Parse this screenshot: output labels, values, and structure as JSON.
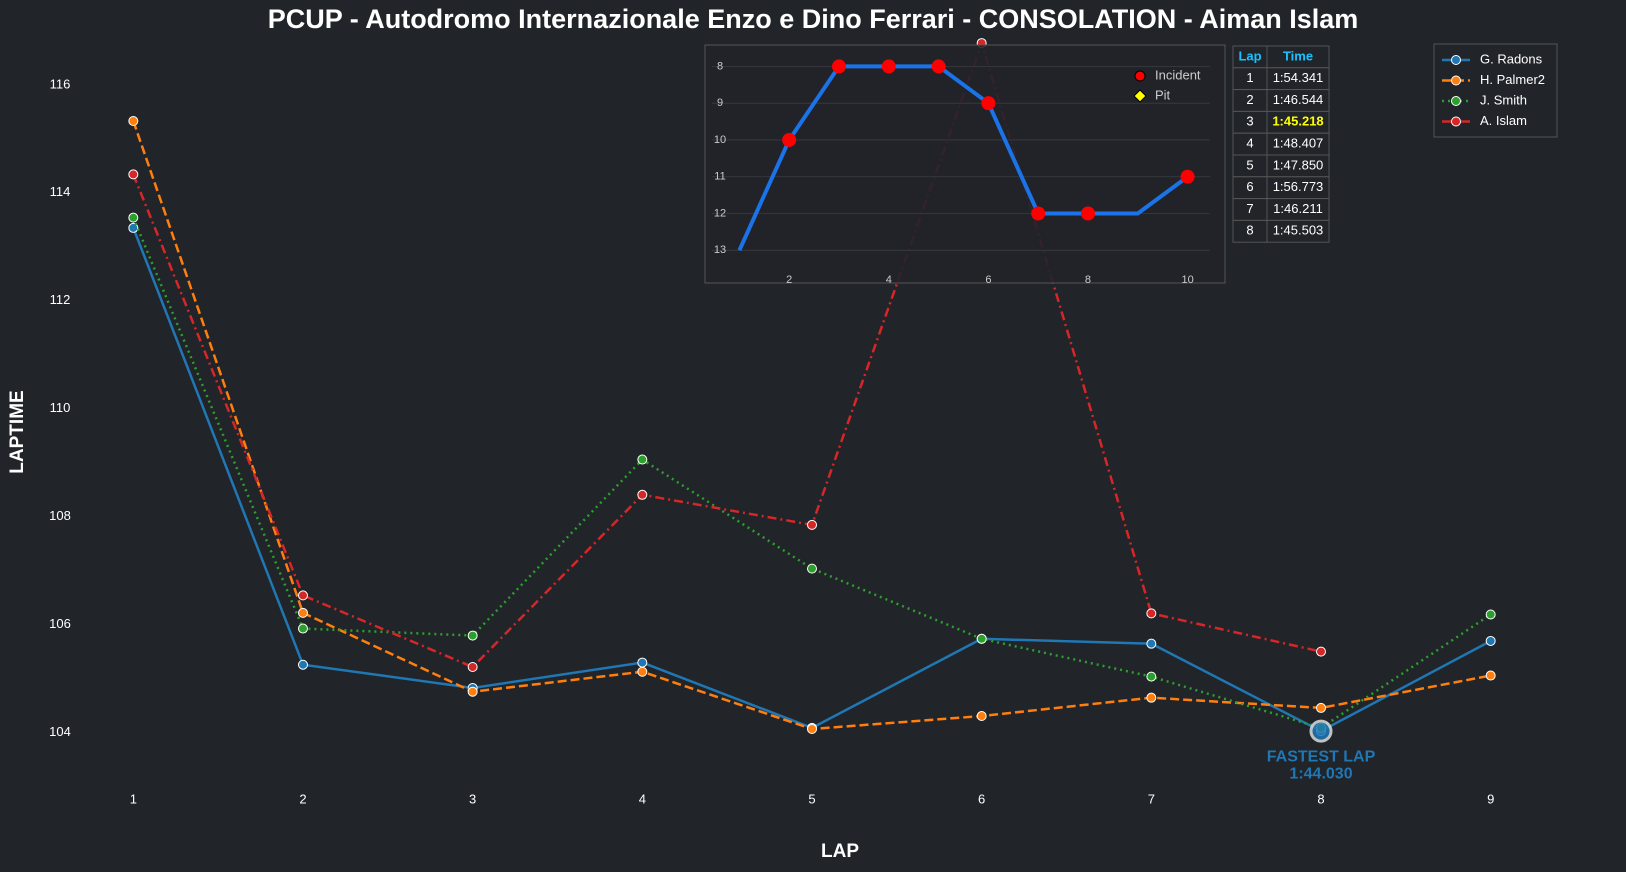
{
  "chart_data": [
    {
      "type": "line",
      "title": "PCUP - Autodromo Internazionale Enzo e Dino Ferrari - CONSOLATION - Aiman Islam",
      "x_label": "LAP",
      "y_label": "LAPTIME",
      "x": [
        1,
        2,
        3,
        4,
        5,
        6,
        7,
        8,
        9
      ],
      "xlim": [
        0.45,
        9.55
      ],
      "xticks": [
        1,
        2,
        3,
        4,
        5,
        6,
        7,
        8,
        9
      ],
      "ylim": [
        102.94,
        116.83
      ],
      "yticks": [
        104,
        106,
        108,
        110,
        112,
        114,
        116
      ],
      "legend": "upper right",
      "series": [
        {
          "name": "G. Radons",
          "color": "#1f77b4",
          "dash": "solid",
          "values": [
            113.35,
            105.26,
            104.83,
            105.3,
            104.09,
            105.74,
            105.65,
            104.03,
            105.7
          ]
        },
        {
          "name": "H. Palmer2",
          "color": "#ff7f0e",
          "dash": "dashed",
          "values": [
            115.33,
            106.22,
            104.76,
            105.13,
            104.07,
            104.31,
            104.65,
            104.46,
            105.06
          ]
        },
        {
          "name": "J. Smith",
          "color": "#2ca02c",
          "dash": "dotted",
          "values": [
            113.54,
            105.93,
            105.8,
            109.06,
            107.04,
            105.74,
            105.04,
            104.09,
            106.19
          ]
        },
        {
          "name": "A. Islam",
          "color": "#d62728",
          "dash": "dashdot",
          "values": [
            114.341,
            106.544,
            105.218,
            108.407,
            107.85,
            116.773,
            106.211,
            105.503,
            null
          ]
        }
      ],
      "annotation": {
        "text": "FASTEST LAP",
        "value_label": "1:44.030",
        "x": 8,
        "y": 104.03,
        "color": "#1f77b4"
      }
    },
    {
      "type": "line",
      "x": [
        1,
        2,
        3,
        4,
        5,
        6,
        7,
        8,
        9,
        10
      ],
      "xlim": [
        0.45,
        10.45
      ],
      "xticks": [
        2,
        4,
        6,
        8,
        10
      ],
      "ylim": [
        13.4,
        7.5
      ],
      "yticks": [
        8,
        9,
        10,
        11,
        12,
        13
      ],
      "color": "#1a73e8",
      "values": [
        13,
        10,
        8,
        8,
        8,
        9,
        12,
        12,
        12,
        11
      ],
      "incident_laps": [
        2,
        3,
        4,
        5,
        6,
        7,
        8,
        10
      ],
      "legend": [
        {
          "name": "Incident",
          "color": "#ff0000"
        },
        {
          "name": "Pit",
          "color": "#ffff00"
        }
      ]
    },
    {
      "type": "table",
      "columns": [
        "Lap",
        "Time"
      ],
      "highlight_lap": 3,
      "rows": [
        [
          1,
          "1:54.341"
        ],
        [
          2,
          "1:46.544"
        ],
        [
          3,
          "1:45.218"
        ],
        [
          4,
          "1:48.407"
        ],
        [
          5,
          "1:47.850"
        ],
        [
          6,
          "1:56.773"
        ],
        [
          7,
          "1:46.211"
        ],
        [
          8,
          "1:45.503"
        ]
      ]
    }
  ]
}
